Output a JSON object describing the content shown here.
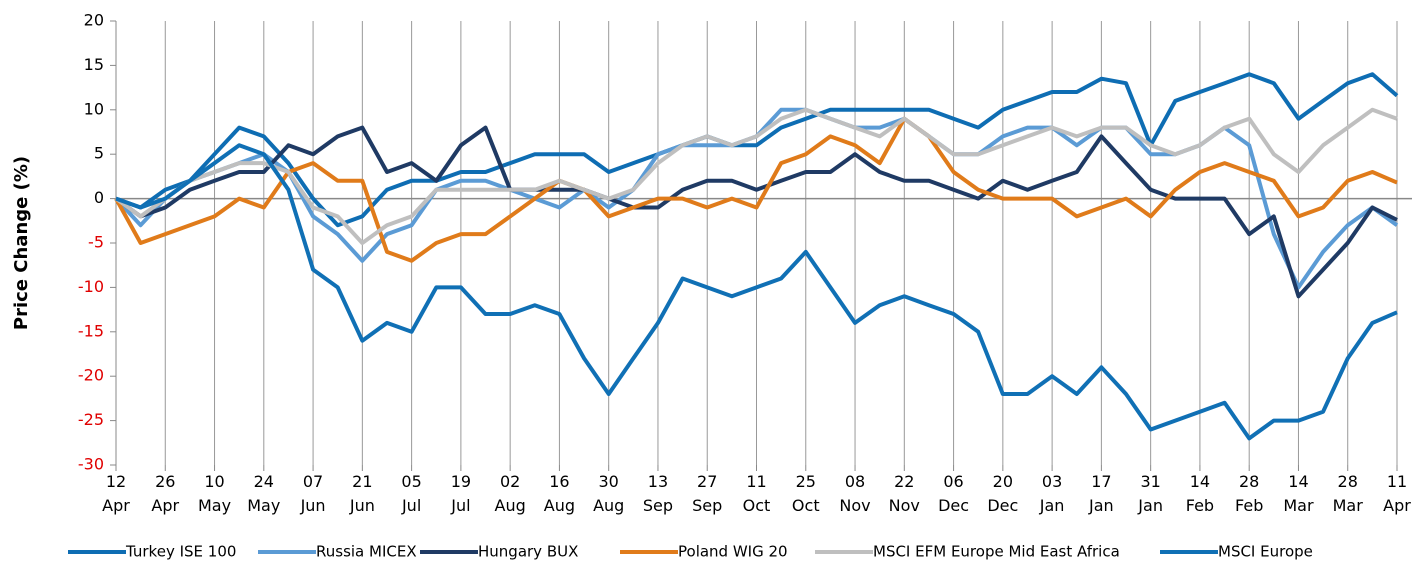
{
  "chart_data": {
    "type": "line",
    "y_label": "Price Change (%)",
    "categories": [
      "12\nApr",
      null,
      "26\nApr",
      null,
      "10\nMay",
      null,
      "24\nMay",
      null,
      "07\nJun",
      null,
      "21\nJun",
      null,
      "05\nJul",
      null,
      "19\nJul",
      null,
      "02\nAug",
      null,
      "16\nAug",
      null,
      "30\nAug",
      null,
      "13\nSep",
      null,
      "27\nSep",
      null,
      "11\nOct",
      null,
      "25\nOct",
      null,
      "08\nNov",
      null,
      "22\nNov",
      null,
      "06\nDec",
      null,
      "20\nDec",
      null,
      "03\nJan",
      null,
      "17\nJan",
      null,
      "31\nJan",
      null,
      "14\nFeb",
      null,
      "28\nFeb",
      null,
      "14\nMar",
      null,
      "28\nMar",
      null,
      "11\nApr"
    ],
    "series": [
      {
        "name": "Turkey ISE 100",
        "color": "#0e6db3",
        "values": [
          0,
          -1,
          1,
          2,
          5,
          8,
          7,
          4,
          0,
          -3,
          -2,
          1,
          2,
          2,
          3,
          3,
          4,
          5,
          5,
          5,
          3,
          4,
          5,
          6,
          7,
          6,
          6,
          8,
          9,
          10,
          10,
          10,
          10,
          10,
          9,
          8,
          10,
          11,
          12,
          12,
          13.5,
          13,
          6,
          11,
          12,
          13,
          14,
          13,
          9,
          11,
          13,
          14,
          11.6
        ]
      },
      {
        "name": "Russia MICEX",
        "color": "#5b9bd5",
        "values": [
          0,
          -3,
          0,
          2,
          3,
          4,
          5,
          3,
          -2,
          -4,
          -7,
          -4,
          -3,
          1,
          2,
          2,
          1,
          0,
          -1,
          1,
          -1,
          1,
          5,
          6,
          6,
          6,
          7,
          10,
          10,
          9,
          8,
          8,
          9,
          7,
          5,
          5,
          7,
          8,
          8,
          6,
          8,
          8,
          5,
          5,
          6,
          8,
          6,
          -4,
          -10,
          -6,
          -3,
          -1,
          -3
        ]
      },
      {
        "name": "Hungary BUX",
        "color": "#1f3a64",
        "values": [
          0,
          -2,
          -1,
          1,
          2,
          3,
          3,
          6,
          5,
          7,
          8,
          3,
          4,
          2,
          6,
          8,
          1,
          1,
          1,
          1,
          0,
          -1,
          -1,
          1,
          2,
          2,
          1,
          2,
          3,
          3,
          5,
          3,
          2,
          2,
          1,
          0,
          2,
          1,
          2,
          3,
          7,
          4,
          1,
          0,
          0,
          0,
          -4,
          -2,
          -11,
          -8,
          -5,
          -1,
          -2.4
        ]
      },
      {
        "name": "Poland WIG 20",
        "color": "#e07b1a",
        "values": [
          0,
          -5,
          -4,
          -3,
          -2,
          0,
          -1,
          3,
          4,
          2,
          2,
          -6,
          -7,
          -5,
          -4,
          -4,
          -2,
          0,
          2,
          1,
          -2,
          -1,
          0,
          0,
          -1,
          0,
          -1,
          4,
          5,
          7,
          6,
          4,
          9,
          7,
          3,
          1,
          0,
          0,
          0,
          -2,
          -1,
          0,
          -2,
          1,
          3,
          4,
          3,
          2,
          -2,
          -1,
          2,
          3,
          1.8
        ]
      },
      {
        "name": "MSCI EFM Europe Mid East Africa",
        "color": "#bfbfbf",
        "values": [
          0,
          -2,
          0,
          2,
          3,
          4,
          4,
          3,
          -1,
          -2,
          -5,
          -3,
          -2,
          1,
          1,
          1,
          1,
          1,
          2,
          1,
          0,
          1,
          4,
          6,
          7,
          6,
          7,
          9,
          10,
          9,
          8,
          7,
          9,
          7,
          5,
          5,
          6,
          7,
          8,
          7,
          8,
          8,
          6,
          5,
          6,
          8,
          9,
          5,
          3,
          6,
          8,
          10,
          9
        ]
      },
      {
        "name": "MSCI Europe",
        "color": "#1070b5",
        "values": [
          0,
          -1,
          0,
          2,
          4,
          6,
          5,
          1,
          -8,
          -10,
          -16,
          -14,
          -15,
          -10,
          -10,
          -13,
          -13,
          -12,
          -13,
          -18,
          -22,
          -18,
          -14,
          -9,
          -10,
          -11,
          -10,
          -9,
          -6,
          -10,
          -14,
          -12,
          -11,
          -12,
          -13,
          -15,
          -22,
          -22,
          -20,
          -22,
          -19,
          -22,
          -26,
          -25,
          -24,
          -23,
          -27,
          -25,
          -25,
          -24,
          -18,
          -14,
          -12.8
        ]
      }
    ],
    "ylim": [
      -30,
      20
    ],
    "yticks": [
      -30,
      -25,
      -20,
      -15,
      -10,
      -5,
      0,
      5,
      10,
      15,
      20
    ],
    "negative_tick_color": "#e00000",
    "grid": true,
    "legend": "bottom"
  }
}
